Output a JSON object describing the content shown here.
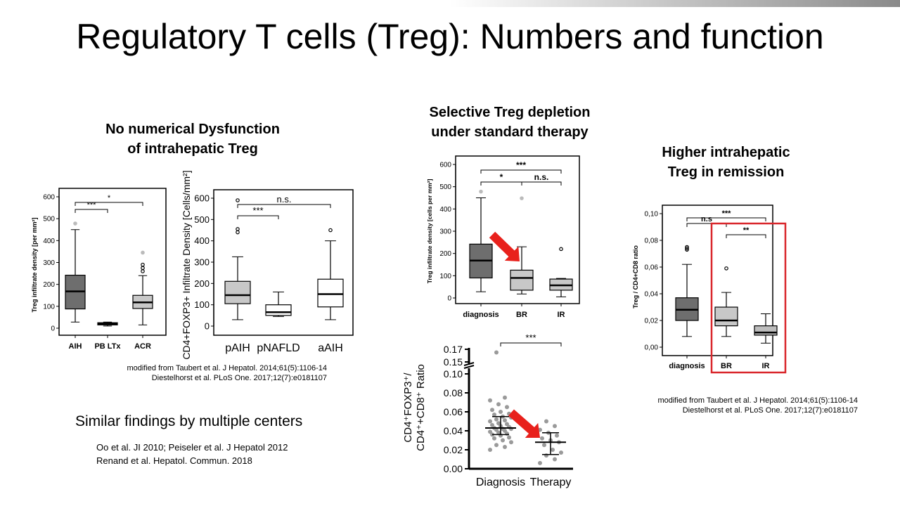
{
  "slide": {
    "title": "Regulatory T cells (Treg): Numbers and function",
    "heading_left_1": "No numerical Dysfunction",
    "heading_left_2": "of intrahepatic Treg",
    "heading_mid_1": "Selective Treg depletion",
    "heading_mid_2": "under standard therapy",
    "heading_right_1": "Higher intrahepatic",
    "heading_right_2": "Treg in remission",
    "citation_left_1": "modified from Taubert et al. J Hepatol. 2014;61(5):1106-14",
    "citation_left_2": "Diestelhorst et al. PLoS One. 2017;12(7):e0181107",
    "citation_right_1": "modified from Taubert et al. J Hepatol. 2014;61(5):1106-14",
    "citation_right_2": "Diestelhorst et al. PLoS One. 2017;12(7):e0181107",
    "similar_findings": "Similar findings by multiple centers",
    "refs_1": "Oo et al. JI 2010; Peiseler et al. J Hepatol 2012",
    "refs_2": "Renand et al. Hepatol. Commun. 2018"
  },
  "colors": {
    "dark_box": "#6e6e6e",
    "light_box": "#c8c8c8",
    "arrow": "#e8211c",
    "highlight": "#d9262b"
  },
  "chart_data": [
    {
      "type": "box",
      "ylabel": "Treg infiltrate density [per mm²]",
      "ylim": [
        0,
        600
      ],
      "yticks": [
        "0",
        "100",
        "200",
        "300",
        "400",
        "500",
        "600"
      ],
      "categories": [
        "AIH",
        "PB LTx",
        "ACR"
      ],
      "boxes": [
        {
          "q1": 88,
          "median": 168,
          "q3": 242,
          "whisker_low": 28,
          "whisker_high": 450,
          "outliers": [
            478
          ]
        },
        {
          "q1": 15,
          "median": 20,
          "q3": 25,
          "whisker_low": 10,
          "whisker_high": 28,
          "outliers": []
        },
        {
          "q1": 90,
          "median": 118,
          "q3": 150,
          "whisker_low": 15,
          "whisker_high": 240,
          "outliers": [
            260,
            275,
            290,
            345
          ]
        }
      ],
      "significance": [
        "***",
        "*"
      ]
    },
    {
      "type": "box",
      "ylabel": "CD4+FOXP3+ Infiltrate Density [Cells/mm²]",
      "ylim": [
        0,
        600
      ],
      "yticks": [
        "0",
        "100",
        "200",
        "300",
        "400",
        "500",
        "600"
      ],
      "categories": [
        "pAIH",
        "pNAFLD",
        "aAIH"
      ],
      "boxes": [
        {
          "q1": 105,
          "median": 145,
          "q3": 210,
          "whisker_low": 30,
          "whisker_high": 325,
          "outliers": [
            440,
            455,
            590
          ]
        },
        {
          "q1": 50,
          "median": 65,
          "q3": 100,
          "whisker_low": 45,
          "whisker_high": 160,
          "outliers": []
        },
        {
          "q1": 90,
          "median": 150,
          "q3": 220,
          "whisker_low": 30,
          "whisker_high": 400,
          "outliers": [
            450
          ]
        }
      ],
      "significance": [
        "***",
        "n.s."
      ]
    },
    {
      "type": "box",
      "ylabel": "Treg infiltrate density [cells per mm²]",
      "ylim": [
        0,
        600
      ],
      "yticks": [
        "0",
        "100",
        "200",
        "300",
        "400",
        "500",
        "600"
      ],
      "categories": [
        "diagnosis",
        "BR",
        "IR"
      ],
      "boxes": [
        {
          "q1": 90,
          "median": 168,
          "q3": 242,
          "whisker_low": 28,
          "whisker_high": 450,
          "outliers": [
            478
          ]
        },
        {
          "q1": 35,
          "median": 90,
          "q3": 125,
          "whisker_low": 18,
          "whisker_high": 230,
          "outliers": [
            448
          ]
        },
        {
          "q1": 35,
          "median": 57,
          "q3": 85,
          "whisker_low": 5,
          "whisker_high": 88,
          "outliers": [
            220
          ]
        }
      ],
      "significance": [
        "*",
        "n.s.",
        "***"
      ]
    },
    {
      "type": "box",
      "ylabel": "Treg / CD4+CD8 ratio",
      "ylim": [
        0,
        0.1
      ],
      "yticks": [
        "0,00",
        "0,02",
        "0,04",
        "0,06",
        "0,08",
        "0,10"
      ],
      "categories": [
        "diagnosis",
        "BR",
        "IR"
      ],
      "boxes": [
        {
          "q1": 0.02,
          "median": 0.028,
          "q3": 0.037,
          "whisker_low": 0.008,
          "whisker_high": 0.062,
          "outliers": [
            0.073,
            0.074,
            0.075
          ]
        },
        {
          "q1": 0.016,
          "median": 0.02,
          "q3": 0.03,
          "whisker_low": 0.008,
          "whisker_high": 0.041,
          "outliers": [
            0.059
          ]
        },
        {
          "q1": 0.009,
          "median": 0.011,
          "q3": 0.016,
          "whisker_low": 0.003,
          "whisker_high": 0.025,
          "outliers": []
        }
      ],
      "significance": [
        "n.s",
        "**",
        "***"
      ]
    },
    {
      "type": "scatter",
      "ylabel_line1": "CD4⁺FOXP3⁺/",
      "ylabel_line2": "CD4⁺+CD8⁺ Ratio",
      "yticks": [
        "0.00",
        "0.02",
        "0.04",
        "0.06",
        "0.08",
        "0.10",
        "0.15",
        "0.17"
      ],
      "categories": [
        "Diagnosis",
        "Therapy"
      ],
      "series": [
        {
          "values": [
            0.02,
            0.023,
            0.025,
            0.028,
            0.03,
            0.032,
            0.033,
            0.035,
            0.036,
            0.037,
            0.038,
            0.039,
            0.04,
            0.041,
            0.042,
            0.042,
            0.043,
            0.044,
            0.045,
            0.046,
            0.047,
            0.048,
            0.05,
            0.051,
            0.052,
            0.054,
            0.055,
            0.057,
            0.058,
            0.06,
            0.062,
            0.065,
            0.068,
            0.072,
            0.075,
            0.165
          ],
          "median": 0.043,
          "iqr": [
            0.036,
            0.055
          ]
        },
        {
          "values": [
            0.006,
            0.01,
            0.014,
            0.017,
            0.02,
            0.025,
            0.028,
            0.03,
            0.032,
            0.035,
            0.038,
            0.041,
            0.045,
            0.05
          ],
          "median": 0.028,
          "iqr": [
            0.015,
            0.038
          ]
        }
      ],
      "significance": [
        "***"
      ]
    }
  ]
}
